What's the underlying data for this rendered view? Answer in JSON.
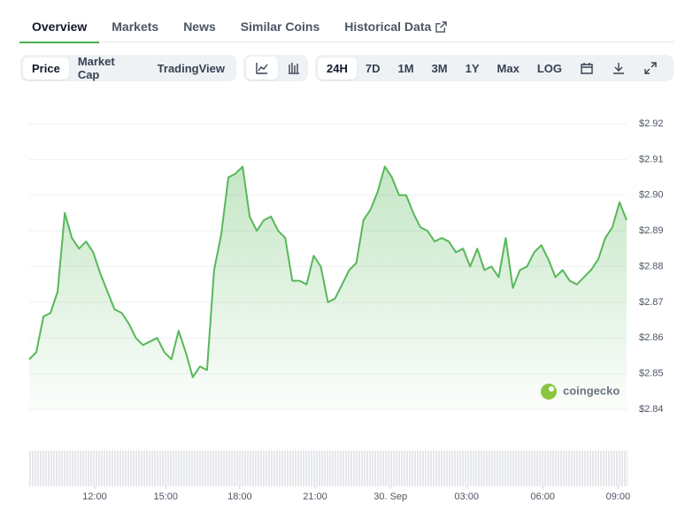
{
  "tabs": [
    "Overview",
    "Markets",
    "News",
    "Similar Coins",
    "Historical Data"
  ],
  "active_tab": 0,
  "buttons": {
    "group1": [
      "Price",
      "Market Cap",
      "TradingView"
    ],
    "group3": [
      "24H",
      "7D",
      "1M",
      "3M",
      "1Y",
      "Max",
      "LOG"
    ]
  },
  "watermark": "coingecko",
  "chart_data": {
    "type": "line",
    "series": [
      {
        "name": "Price",
        "color": "#57b85a",
        "values": [
          2.854,
          2.856,
          2.866,
          2.867,
          2.873,
          2.895,
          2.888,
          2.885,
          2.887,
          2.884,
          2.878,
          2.873,
          2.868,
          2.867,
          2.864,
          2.86,
          2.858,
          2.859,
          2.86,
          2.856,
          2.854,
          2.862,
          2.856,
          2.849,
          2.852,
          2.851,
          2.879,
          2.889,
          2.905,
          2.906,
          2.908,
          2.894,
          2.89,
          2.893,
          2.894,
          2.89,
          2.888,
          2.876,
          2.876,
          2.875,
          2.883,
          2.88,
          2.87,
          2.871,
          2.875,
          2.879,
          2.881,
          2.893,
          2.896,
          2.901,
          2.908,
          2.905,
          2.9,
          2.9,
          2.895,
          2.891,
          2.89,
          2.887,
          2.888,
          2.887,
          2.884,
          2.885,
          2.88,
          2.885,
          2.879,
          2.88,
          2.877,
          2.888,
          2.874,
          2.879,
          2.88,
          2.884,
          2.886,
          2.882,
          2.877,
          2.879,
          2.876,
          2.875,
          2.877,
          2.879,
          2.882,
          2.888,
          2.891,
          2.898,
          2.893
        ]
      }
    ],
    "xlim": [
      0,
      84
    ],
    "xticks": [
      {
        "value": 9.2,
        "label": "12:00"
      },
      {
        "value": 19.2,
        "label": "15:00"
      },
      {
        "value": 29.6,
        "label": "18:00"
      },
      {
        "value": 40.2,
        "label": "21:00"
      },
      {
        "value": 50.8,
        "label": "30. Sep"
      },
      {
        "value": 61.5,
        "label": "03:00"
      },
      {
        "value": 72.2,
        "label": "06:00"
      },
      {
        "value": 82.8,
        "label": "09:00"
      }
    ],
    "ylim": [
      2.84,
      2.92
    ],
    "yticks": [
      {
        "value": 2.84,
        "label": "$2.84"
      },
      {
        "value": 2.85,
        "label": "$2.85"
      },
      {
        "value": 2.86,
        "label": "$2.86"
      },
      {
        "value": 2.87,
        "label": "$2.87"
      },
      {
        "value": 2.88,
        "label": "$2.88"
      },
      {
        "value": 2.89,
        "label": "$2.89"
      },
      {
        "value": 2.9,
        "label": "$2.90"
      },
      {
        "value": 2.91,
        "label": "$2.91"
      },
      {
        "value": 2.92,
        "label": "$2.92"
      }
    ],
    "grid": true
  }
}
